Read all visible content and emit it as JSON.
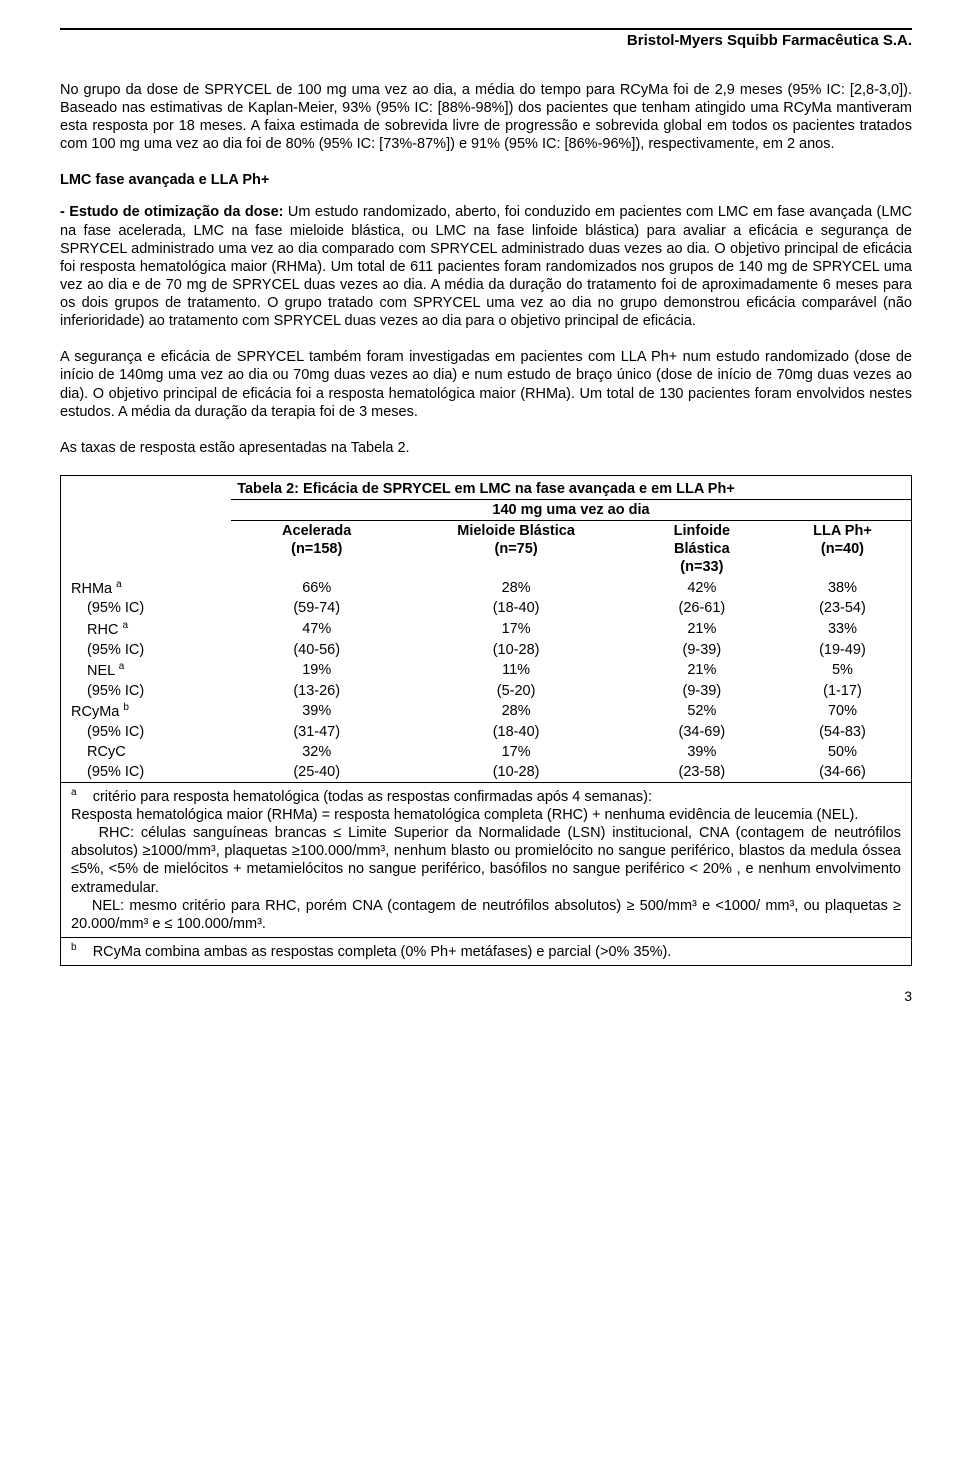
{
  "header": {
    "company": "Bristol-Myers Squibb Farmacêutica S.A."
  },
  "para1": "No grupo da dose de SPRYCEL de 100 mg uma vez ao dia, a média do tempo para RCyMa foi de 2,9 meses (95% IC: [2,8-3,0]). Baseado nas estimativas de Kaplan-Meier, 93% (95% IC: [88%-98%]) dos pacientes que tenham atingido uma RCyMa mantiveram esta resposta por 18 meses. A faixa estimada de sobrevida livre de progressão e sobrevida global em todos os pacientes tratados com 100 mg uma vez ao dia foi de 80% (95% IC: [73%-87%]) e 91% (95% IC: [86%-96%]), respectivamente, em 2 anos.",
  "section2_title": "LMC fase avançada e LLA Ph+",
  "para2_lead": "- Estudo de otimização da dose:",
  "para2_body": " Um estudo randomizado, aberto, foi conduzido em pacientes com LMC em fase avançada (LMC na fase acelerada, LMC na fase mieloide blástica, ou LMC na fase linfoide blástica) para avaliar a eficácia e segurança de SPRYCEL administrado uma vez ao dia comparado com SPRYCEL administrado duas vezes ao dia. O objetivo principal de eficácia foi resposta hematológica maior (RHMa). Um total de 611 pacientes foram randomizados nos grupos de 140 mg de SPRYCEL uma vez ao dia e de 70 mg de SPRYCEL duas vezes ao dia.  A média da duração do tratamento foi de aproximadamente 6 meses para os dois grupos de tratamento. O grupo tratado com SPRYCEL uma vez ao dia no grupo demonstrou eficácia comparável (não inferioridade) ao tratamento com SPRYCEL duas vezes ao dia para o objetivo principal de eficácia.",
  "para3": "A segurança e eficácia de SPRYCEL também foram investigadas em pacientes com LLA Ph+ num estudo randomizado (dose de início de 140mg uma vez ao dia ou 70mg duas vezes ao dia) e num estudo de braço único (dose de início de 70mg duas vezes ao dia). O objetivo principal de eficácia foi a resposta hematológica maior (RHMa). Um total de 130 pacientes foram envolvidos nestes estudos. A média da duração da terapia foi de 3 meses.",
  "para4": "As taxas de resposta estão apresentadas na Tabela 2.",
  "table": {
    "title": "Tabela 2: Eficácia de SPRYCEL em LMC na fase avançada e em LLA Ph+",
    "subtitle": "140 mg uma vez ao dia",
    "colheaders": [
      {
        "l1": "Acelerada",
        "l2": "(n=158)"
      },
      {
        "l1": "Mieloide Blástica",
        "l2": "(n=75)"
      },
      {
        "l1": "Linfoide",
        "l2": "Blástica",
        "l3": "(n=33)"
      },
      {
        "l1": "LLA Ph+",
        "l2": "(n=40)"
      }
    ],
    "rows": [
      {
        "label": "RHMa",
        "sup": "a",
        "vals": [
          "66%",
          "28%",
          "42%",
          "38%"
        ]
      },
      {
        "sublabel": "(95% IC)",
        "vals": [
          "(59-74)",
          "(18-40)",
          "(26-61)",
          "(23-54)"
        ]
      },
      {
        "label": "RHC",
        "sup": "a",
        "indent": true,
        "vals": [
          "47%",
          "17%",
          "21%",
          "33%"
        ]
      },
      {
        "sublabel": "(95% IC)",
        "vals": [
          "(40-56)",
          "(10-28)",
          "(9-39)",
          "(19-49)"
        ]
      },
      {
        "label": "NEL",
        "sup": "a",
        "indent": true,
        "vals": [
          "19%",
          "11%",
          "21%",
          "5%"
        ]
      },
      {
        "sublabel": "(95% IC)",
        "vals": [
          "(13-26)",
          "(5-20)",
          "(9-39)",
          "(1-17)"
        ]
      },
      {
        "label": "RCyMa",
        "sup": "b",
        "vals": [
          "39%",
          "28%",
          "52%",
          "70%"
        ]
      },
      {
        "sublabel": "(95% IC)",
        "vals": [
          "(31-47)",
          "(18-40)",
          "(34-69)",
          "(54-83)"
        ]
      },
      {
        "label": "RCyC",
        "indent": true,
        "vals": [
          "32%",
          "17%",
          "39%",
          "50%"
        ]
      },
      {
        "sublabel": "(95% IC)",
        "vals": [
          "(25-40)",
          "(10-28)",
          "(23-58)",
          "(34-66)"
        ]
      }
    ],
    "note_a_sup": "a",
    "note_a_lead": "critério para resposta hematológica (todas as respostas confirmadas após 4 semanas):",
    "note_a_p1": "Resposta hematológica maior (RHMa) = resposta hematológica completa (RHC) + nenhuma evidência de leucemia (NEL).",
    "note_a_p2": "RHC: células sanguíneas brancas ≤ Limite Superior da Normalidade (LSN) institucional, CNA (contagem de neutrófilos absolutos) ≥1000/mm³, plaquetas ≥100.000/mm³, nenhum blasto ou promielócito no sangue periférico, blastos da medula óssea ≤5%, <5% de mielócitos + metamielócitos no sangue periférico, basófilos no sangue periférico < 20% , e nenhum envolvimento extramedular.",
    "note_a_p3": "NEL: mesmo critério para RHC, porém CNA (contagem de neutrófilos absolutos) ≥ 500/mm³ e <1000/ mm³, ou plaquetas ≥ 20.000/mm³ e ≤ 100.000/mm³.",
    "note_b_sup": "b",
    "note_b": "RCyMa combina ambas as respostas completa (0% Ph+ metáfases) e parcial (>0% 35%)."
  },
  "page_number": "3"
}
